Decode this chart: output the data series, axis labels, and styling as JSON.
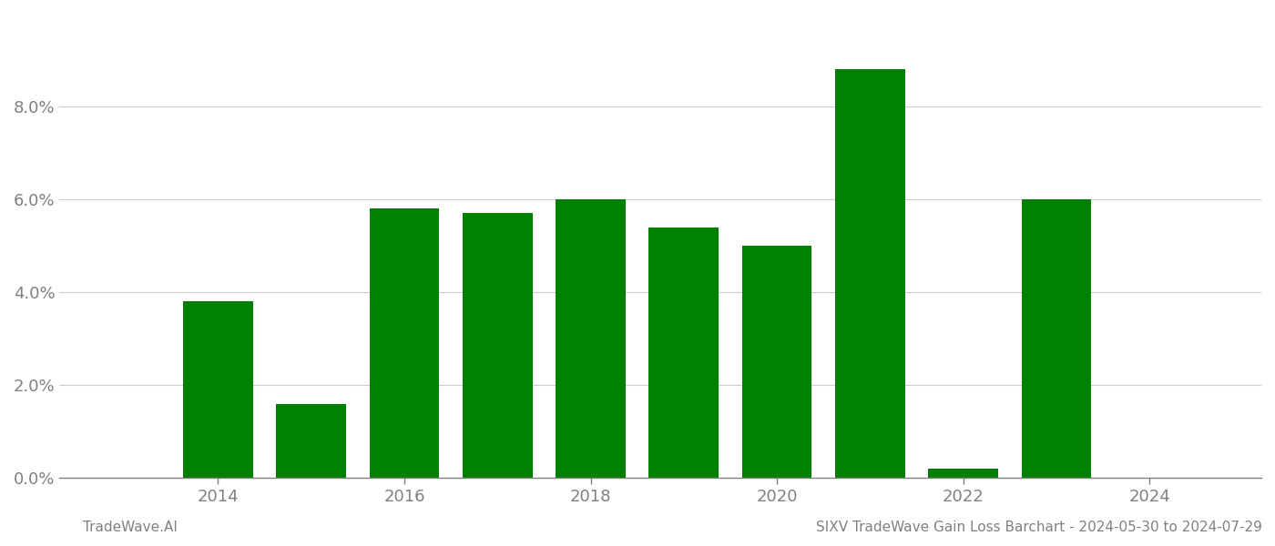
{
  "years": [
    2013,
    2014,
    2015,
    2016,
    2017,
    2018,
    2019,
    2020,
    2021,
    2022,
    2023,
    2024
  ],
  "values": [
    0.0,
    0.038,
    0.016,
    0.058,
    0.057,
    0.06,
    0.054,
    0.05,
    0.088,
    0.002,
    0.06,
    0.0
  ],
  "bar_color": "#008000",
  "title": "SIXV TradeWave Gain Loss Barchart - 2024-05-30 to 2024-07-29",
  "footer_left": "TradeWave.AI",
  "background_color": "#ffffff",
  "grid_color": "#cccccc",
  "tick_color": "#808080",
  "ylim": [
    0,
    0.1
  ],
  "yticks": [
    0.0,
    0.02,
    0.04,
    0.06,
    0.08
  ],
  "xticks": [
    2014,
    2016,
    2018,
    2020,
    2022,
    2024
  ],
  "xlim": [
    2012.3,
    2025.2
  ],
  "bar_width": 0.75
}
